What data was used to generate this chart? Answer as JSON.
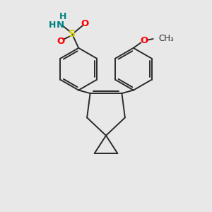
{
  "bg_color": "#e8e8e8",
  "bond_color": "#2a2a2a",
  "S_color": "#cccc00",
  "O_color": "#ff0000",
  "N_color": "#008080",
  "OMe_O_color": "#ff0000",
  "figsize": [
    3.0,
    3.0
  ],
  "dpi": 100,
  "xlim": [
    0,
    10
  ],
  "ylim": [
    0,
    10
  ]
}
